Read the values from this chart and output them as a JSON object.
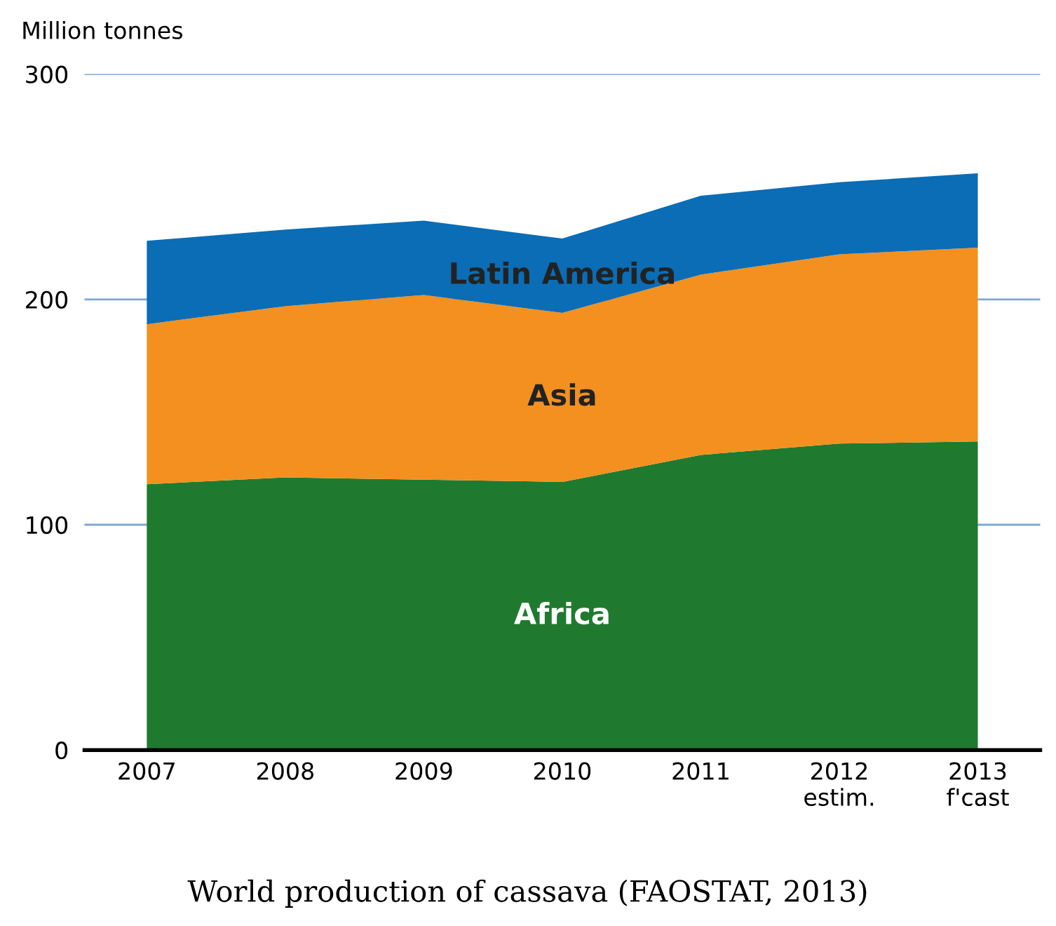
{
  "chart_data": {
    "type": "area",
    "stacked": true,
    "title": "World production of cassava (FAOSTAT, 2013)",
    "ylabel": "Million tonnes",
    "categories": [
      "2007",
      "2008",
      "2009",
      "2010",
      "2011",
      "2012\nestim.",
      "2013\nf'cast"
    ],
    "series": [
      {
        "name": "Africa",
        "color": "#1f7a30",
        "values": [
          118,
          121,
          120,
          119,
          131,
          136,
          137
        ]
      },
      {
        "name": "Asia",
        "color": "#f39020",
        "values": [
          71,
          76,
          82,
          75,
          80,
          84,
          86
        ]
      },
      {
        "name": "Latin America",
        "color": "#0a6db5",
        "values": [
          37,
          34,
          33,
          33,
          35,
          32,
          33
        ]
      }
    ],
    "ylim": [
      0,
      300
    ],
    "yticks": [
      0,
      100,
      200,
      300
    ],
    "grid": "y",
    "legend": false
  }
}
